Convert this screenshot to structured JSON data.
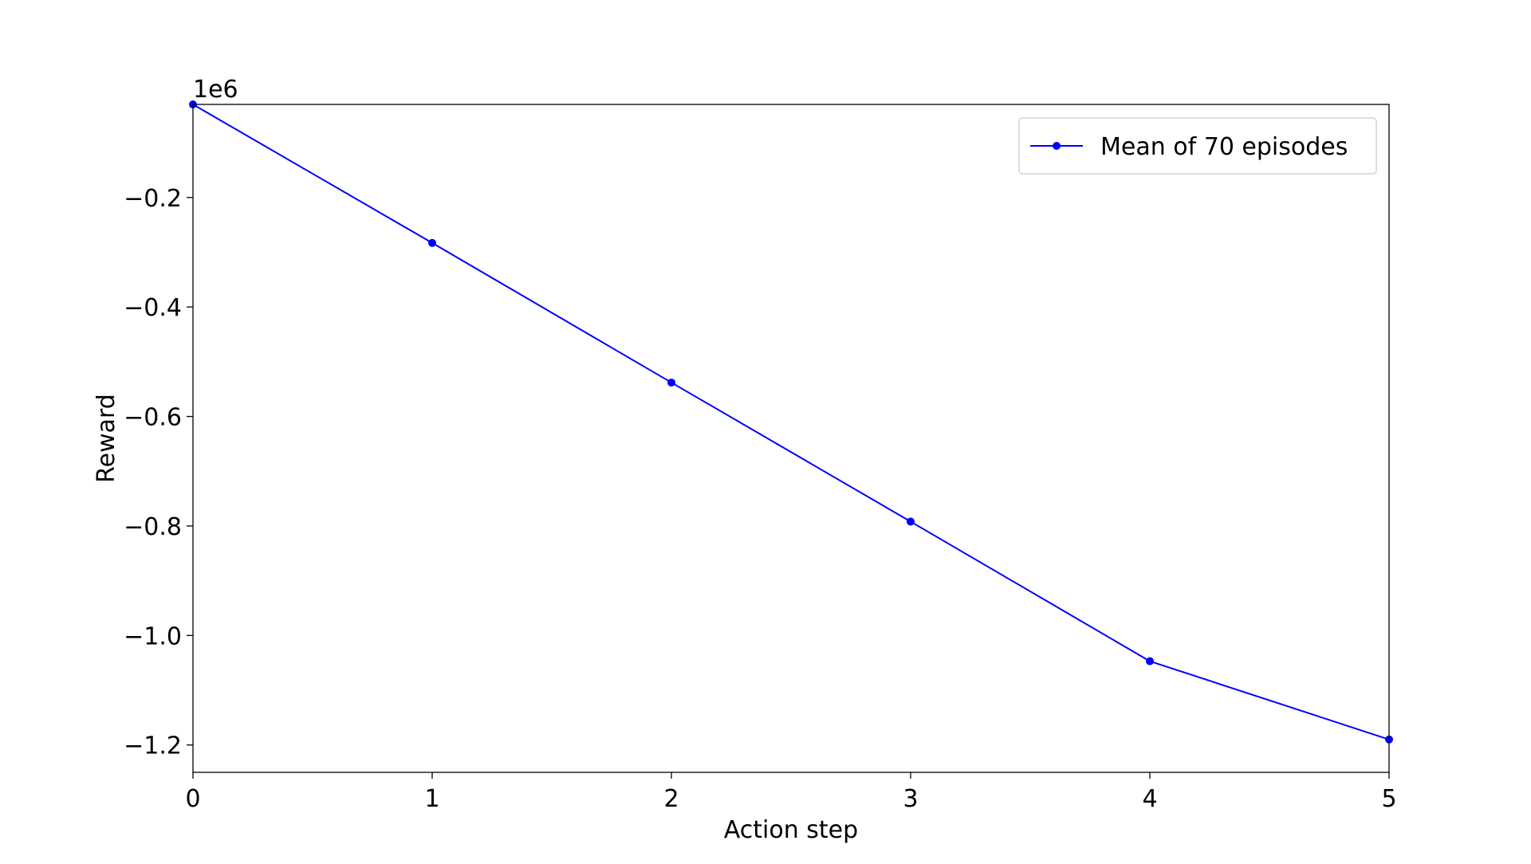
{
  "chart_data": {
    "type": "line",
    "title": "",
    "xlabel": "Action step",
    "ylabel": "Reward",
    "y_offset_label": "1e6",
    "x": [
      0,
      1,
      2,
      3,
      4,
      5
    ],
    "series": [
      {
        "name": "Mean of 70 episodes",
        "color": "#0000ff",
        "marker": "circle",
        "values": [
          -0.03,
          -0.283,
          -0.538,
          -0.792,
          -1.047,
          -1.19
        ]
      }
    ],
    "xlim": [
      0,
      5
    ],
    "ylim": [
      -1.25,
      -0.03
    ],
    "xticks": [
      0,
      1,
      2,
      3,
      4,
      5
    ],
    "xtick_labels": [
      "0",
      "1",
      "2",
      "3",
      "4",
      "5"
    ],
    "yticks": [
      -0.2,
      -0.4,
      -0.6,
      -0.8,
      -1.0,
      -1.2
    ],
    "ytick_labels": [
      "−0.2",
      "−0.4",
      "−0.6",
      "−0.8",
      "−1.0",
      "−1.2"
    ],
    "grid": false,
    "legend_position": "top-right"
  }
}
